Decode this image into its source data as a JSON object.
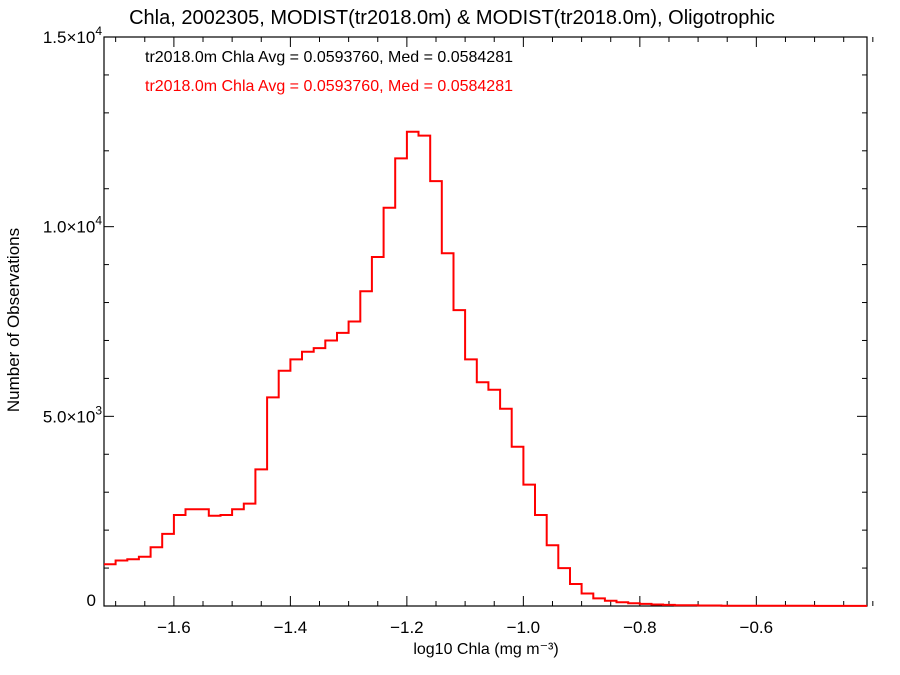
{
  "chart_data": {
    "type": "line",
    "title": "Chla, 2002305, MODIST(tr2018.0m) & MODIST(tr2018.0m), Oligotrophic",
    "xlabel": "log10 Chla (mg m⁻³)",
    "ylabel": "Number of Observations",
    "xlim": [
      -1.72,
      -0.41
    ],
    "ylim": [
      0,
      15000
    ],
    "x_ticks": [
      -1.6,
      -1.4,
      -1.2,
      -1.0,
      -0.8,
      -0.6
    ],
    "x_tick_labels": [
      "−1.6",
      "−1.4",
      "−1.2",
      "−1.0",
      "−0.8",
      "−0.6"
    ],
    "y_ticks": [
      0,
      5000,
      10000,
      15000
    ],
    "y_tick_labels": [
      {
        "base": "0",
        "exp": ""
      },
      {
        "base": "5.0×10",
        "exp": "3"
      },
      {
        "base": "1.0×10",
        "exp": "4"
      },
      {
        "base": "1.5×10",
        "exp": "4"
      }
    ],
    "annotations": [
      {
        "text": "tr2018.0m Chla Avg = 0.0593760, Med = 0.0584281",
        "color": "#000000"
      },
      {
        "text": "tr2018.0m Chla Avg = 0.0593760, Med = 0.0584281",
        "color": "#ff0000"
      }
    ],
    "series": [
      {
        "style": "step",
        "color": "#ff0000",
        "points": [
          [
            -1.72,
            1100
          ],
          [
            -1.7,
            1200
          ],
          [
            -1.68,
            1230
          ],
          [
            -1.66,
            1300
          ],
          [
            -1.64,
            1550
          ],
          [
            -1.62,
            1900
          ],
          [
            -1.6,
            2400
          ],
          [
            -1.58,
            2550
          ],
          [
            -1.56,
            2550
          ],
          [
            -1.54,
            2380
          ],
          [
            -1.52,
            2400
          ],
          [
            -1.5,
            2550
          ],
          [
            -1.48,
            2700
          ],
          [
            -1.46,
            3600
          ],
          [
            -1.44,
            5500
          ],
          [
            -1.42,
            6200
          ],
          [
            -1.4,
            6500
          ],
          [
            -1.38,
            6700
          ],
          [
            -1.36,
            6800
          ],
          [
            -1.34,
            7000
          ],
          [
            -1.32,
            7200
          ],
          [
            -1.3,
            7500
          ],
          [
            -1.28,
            8300
          ],
          [
            -1.26,
            9200
          ],
          [
            -1.24,
            10500
          ],
          [
            -1.22,
            11800
          ],
          [
            -1.2,
            12500
          ],
          [
            -1.18,
            12400
          ],
          [
            -1.16,
            11200
          ],
          [
            -1.14,
            9300
          ],
          [
            -1.12,
            7800
          ],
          [
            -1.1,
            6500
          ],
          [
            -1.08,
            5900
          ],
          [
            -1.06,
            5700
          ],
          [
            -1.04,
            5200
          ],
          [
            -1.02,
            4200
          ],
          [
            -1.0,
            3200
          ],
          [
            -0.98,
            2400
          ],
          [
            -0.96,
            1600
          ],
          [
            -0.94,
            1000
          ],
          [
            -0.92,
            580
          ],
          [
            -0.9,
            330
          ],
          [
            -0.88,
            200
          ],
          [
            -0.86,
            140
          ],
          [
            -0.84,
            100
          ],
          [
            -0.82,
            75
          ],
          [
            -0.8,
            55
          ],
          [
            -0.78,
            40
          ],
          [
            -0.76,
            30
          ],
          [
            -0.74,
            20
          ],
          [
            -0.7,
            12
          ],
          [
            -0.66,
            8
          ],
          [
            -0.6,
            5
          ],
          [
            -0.5,
            3
          ],
          [
            -0.41,
            2
          ]
        ]
      }
    ],
    "grid": false,
    "legend": "none"
  }
}
